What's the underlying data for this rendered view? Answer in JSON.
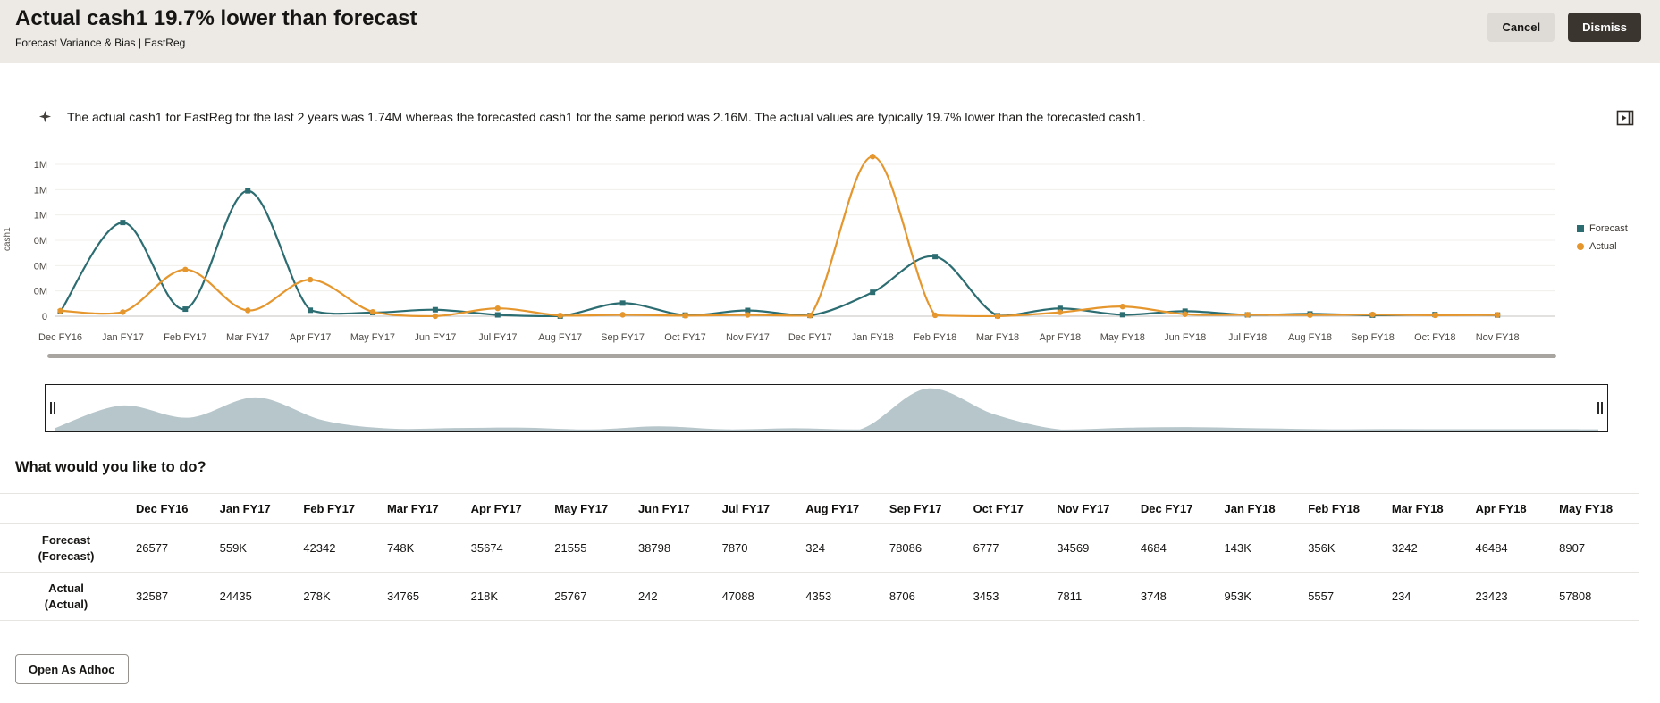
{
  "header": {
    "title": "Actual cash1 19.7% lower than forecast",
    "subtitle": "Forecast Variance & Bias | EastReg",
    "cancel_label": "Cancel",
    "dismiss_label": "Dismiss"
  },
  "insight": {
    "text": "The actual cash1 for EastReg for the last 2 years was 1.74M whereas the forecasted cash1 for the same period was 2.16M. The actual values are typically 19.7% lower than the forecasted cash1."
  },
  "icons": {
    "left_of_insight": "insight-sparkle-icon",
    "right_of_insight": "expand-panel-icon"
  },
  "chart_data": {
    "type": "line",
    "title": "",
    "ylabel": "cash1",
    "legend_position": "right",
    "grid": true,
    "x": [
      "Dec FY16",
      "Jan FY17",
      "Feb FY17",
      "Mar FY17",
      "Apr FY17",
      "May FY17",
      "Jun FY17",
      "Jul FY17",
      "Aug FY17",
      "Sep FY17",
      "Oct FY17",
      "Nov FY17",
      "Dec FY17",
      "Jan FY18",
      "Feb FY18",
      "Mar FY18",
      "Apr FY18",
      "May FY18",
      "Jun FY18",
      "Jul FY18",
      "Aug FY18",
      "Sep FY18",
      "Oct FY18",
      "Nov FY18"
    ],
    "y_axis_labels_bottom_to_top": [
      "0",
      "0M",
      "0M",
      "0M",
      "1M",
      "1M",
      "1M"
    ],
    "y_max_at_top_gridline": 906000,
    "series": [
      {
        "name": "Forecast",
        "marker": "square",
        "color": "#2c6d72",
        "values": [
          26577,
          559000,
          42342,
          748000,
          35674,
          21555,
          38798,
          7870,
          324,
          78086,
          6777,
          34569,
          4684,
          143000,
          356000,
          3242,
          46484,
          8907,
          30000,
          8000,
          14000,
          6000,
          10000,
          7000
        ]
      },
      {
        "name": "Actual",
        "marker": "circle",
        "color": "#e5962d",
        "values": [
          32587,
          24435,
          278000,
          34765,
          218000,
          25767,
          242,
          47088,
          4353,
          8706,
          3453,
          7811,
          3748,
          953000,
          5557,
          234,
          23423,
          57808,
          12000,
          9000,
          7000,
          10000,
          6000,
          8000
        ]
      }
    ],
    "brush_fill": "#b7c6ca"
  },
  "prompt_heading": "What would you like to do?",
  "table": {
    "columns": [
      "Dec FY16",
      "Jan FY17",
      "Feb FY17",
      "Mar FY17",
      "Apr FY17",
      "May FY17",
      "Jun FY17",
      "Jul FY17",
      "Aug FY17",
      "Sep FY17",
      "Oct FY17",
      "Nov FY17",
      "Dec FY17",
      "Jan FY18",
      "Feb FY18",
      "Mar FY18",
      "Apr FY18",
      "May FY18"
    ],
    "rows": [
      {
        "label": [
          "Forecast",
          "(Forecast)"
        ],
        "values": [
          "26577",
          "559K",
          "42342",
          "748K",
          "35674",
          "21555",
          "38798",
          "7870",
          "324",
          "78086",
          "6777",
          "34569",
          "4684",
          "143K",
          "356K",
          "3242",
          "46484",
          "8907"
        ]
      },
      {
        "label": [
          "Actual",
          "(Actual)"
        ],
        "values": [
          "32587",
          "24435",
          "278K",
          "34765",
          "218K",
          "25767",
          "242",
          "47088",
          "4353",
          "8706",
          "3453",
          "7811",
          "3748",
          "953K",
          "5557",
          "234",
          "23423",
          "57808"
        ]
      }
    ]
  },
  "actions": {
    "open_adhoc_label": "Open As Adhoc"
  }
}
